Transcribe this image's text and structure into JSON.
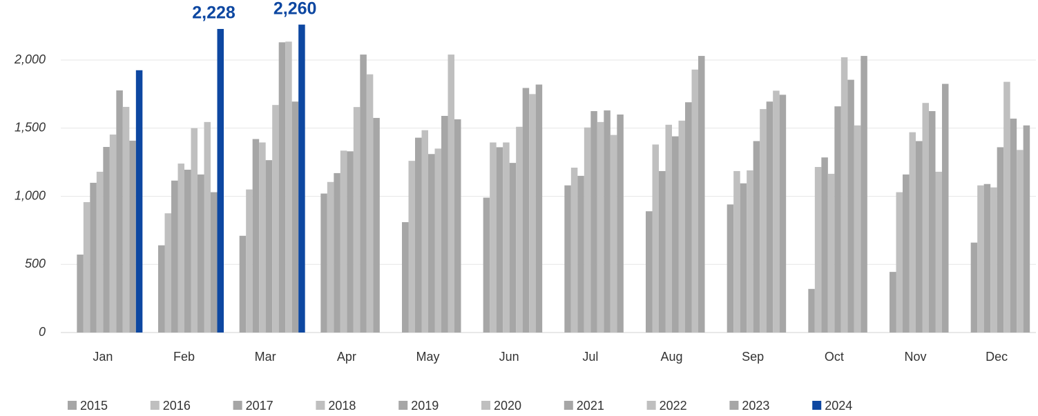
{
  "chart_data": {
    "type": "bar",
    "categories": [
      "Jan",
      "Feb",
      "Mar",
      "Apr",
      "May",
      "Jun",
      "Jul",
      "Aug",
      "Sep",
      "Oct",
      "Nov",
      "Dec"
    ],
    "series": [
      {
        "name": "2015",
        "color": "#a6a6a6",
        "values": [
          572,
          640,
          710,
          1020,
          810,
          990,
          1080,
          890,
          940,
          320,
          445,
          660
        ]
      },
      {
        "name": "2016",
        "color": "#bfbfbf",
        "values": [
          957,
          875,
          1050,
          1105,
          1260,
          1395,
          1210,
          1380,
          1185,
          1215,
          1030,
          1080
        ]
      },
      {
        "name": "2017",
        "color": "#a6a6a6",
        "values": [
          1099,
          1115,
          1420,
          1170,
          1430,
          1360,
          1150,
          1185,
          1095,
          1285,
          1160,
          1090
        ]
      },
      {
        "name": "2018",
        "color": "#bfbfbf",
        "values": [
          1180,
          1240,
          1395,
          1335,
          1485,
          1395,
          1505,
          1525,
          1190,
          1165,
          1470,
          1065
        ]
      },
      {
        "name": "2019",
        "color": "#a6a6a6",
        "values": [
          1362,
          1195,
          1265,
          1330,
          1310,
          1245,
          1625,
          1440,
          1405,
          1660,
          1405,
          1360
        ]
      },
      {
        "name": "2020",
        "color": "#bfbfbf",
        "values": [
          1453,
          1500,
          1670,
          1655,
          1350,
          1510,
          1545,
          1555,
          1640,
          2020,
          1685,
          1840
        ]
      },
      {
        "name": "2021",
        "color": "#a6a6a6",
        "values": [
          1777,
          1160,
          2130,
          2040,
          1590,
          1795,
          1630,
          1690,
          1695,
          1855,
          1625,
          1570
        ]
      },
      {
        "name": "2022",
        "color": "#bfbfbf",
        "values": [
          1656,
          1545,
          2135,
          1895,
          2040,
          1750,
          1450,
          1930,
          1775,
          1520,
          1180,
          1340
        ]
      },
      {
        "name": "2023",
        "color": "#a6a6a6",
        "values": [
          1408,
          1030,
          1695,
          1575,
          1565,
          1820,
          1600,
          2030,
          1745,
          2030,
          1825,
          1520
        ]
      },
      {
        "name": "2024",
        "color": "#0d47a1",
        "values": [
          1925,
          2228,
          2260,
          null,
          null,
          null,
          null,
          null,
          null,
          null,
          null,
          null
        ],
        "value_labels": [
          null,
          "2,228",
          "2,260",
          null,
          null,
          null,
          null,
          null,
          null,
          null,
          null,
          null
        ]
      }
    ],
    "ylim": [
      0,
      2300
    ],
    "yticks": [
      0,
      500,
      {
        "value": 1000,
        "label": "1,000"
      },
      {
        "value": 1500,
        "label": "1,500"
      },
      {
        "value": 2000,
        "label": "2,000"
      }
    ],
    "grid": true,
    "legend": "bottom"
  }
}
